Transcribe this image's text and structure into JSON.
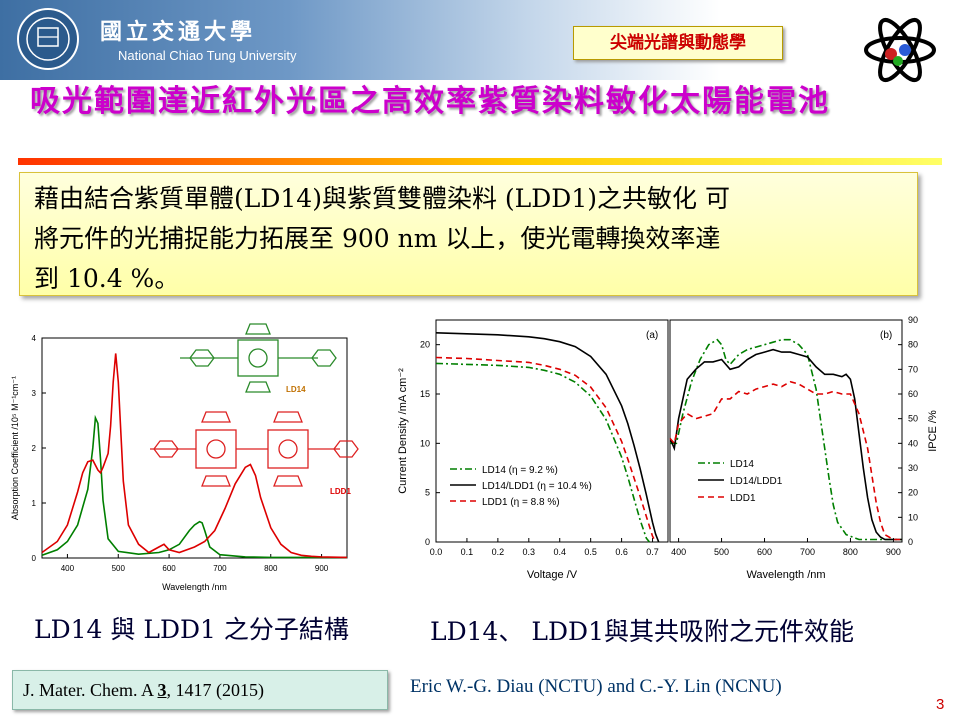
{
  "header": {
    "university_zh": "國立交通大學",
    "university_en": "National Chiao Tung University",
    "course_tag": "尖端光譜與動態學"
  },
  "title": "吸光範圍達近紅外光區之高效率紫質染料敏化太陽能電池",
  "summary": {
    "line1": "藉由結合紫質單體(LD14)與紫質雙體染料 (LDD1)之共敏化 可",
    "line2": "將元件的光捕捉能力拓展至 900 nm 以上，使光電轉換效率達",
    "line3": "到 10.4 %。"
  },
  "captions": {
    "left": "LD14 與 LDD1 之分子結構",
    "right": "LD14、 LDD1與其共吸附之元件效能"
  },
  "reference": {
    "journal": "J. Mater. Chem. A ",
    "volume": "3",
    "rest": ", 1417 (2015)"
  },
  "authors": "Eric W.-G. Diau (NCTU) and C.-Y. Lin (NCNU)",
  "page_number": "3",
  "colors": {
    "title": "#cc00cc",
    "green": "#007f00",
    "red": "#dd0000",
    "black": "#000000"
  },
  "chart_data": [
    {
      "type": "line",
      "xlabel": "Wavelength /nm",
      "ylabel": "Absorption Coefficient /10⁵ M⁻¹cm⁻¹",
      "xlim": [
        350,
        950
      ],
      "ylim": [
        0,
        4
      ],
      "xticks": [
        400,
        500,
        600,
        700,
        800,
        900
      ],
      "yticks": [
        0,
        1,
        2,
        3,
        4
      ],
      "structure_labels": {
        "ld14": "LD14",
        "ldd1": "LDD1"
      },
      "series": [
        {
          "name": "LD14",
          "color": "#007f00",
          "x": [
            350,
            380,
            400,
            420,
            440,
            450,
            455,
            460,
            465,
            470,
            480,
            500,
            540,
            580,
            600,
            620,
            640,
            650,
            660,
            665,
            670,
            680,
            700,
            750,
            800,
            850,
            900,
            950
          ],
          "y": [
            0.05,
            0.15,
            0.3,
            0.6,
            1.25,
            2.0,
            2.55,
            2.45,
            1.8,
            1.05,
            0.35,
            0.12,
            0.07,
            0.1,
            0.15,
            0.25,
            0.5,
            0.6,
            0.66,
            0.64,
            0.5,
            0.2,
            0.06,
            0.02,
            0.01,
            0.01,
            0.01,
            0.01
          ]
        },
        {
          "name": "LDD1",
          "color": "#dd0000",
          "x": [
            350,
            380,
            400,
            420,
            430,
            440,
            450,
            460,
            465,
            470,
            480,
            485,
            490,
            495,
            500,
            505,
            510,
            520,
            540,
            560,
            580,
            590,
            600,
            620,
            650,
            670,
            690,
            710,
            730,
            750,
            760,
            770,
            780,
            800,
            820,
            840,
            860,
            880,
            900,
            950
          ],
          "y": [
            0.1,
            0.3,
            0.6,
            1.2,
            1.55,
            1.75,
            1.78,
            1.6,
            1.55,
            1.65,
            1.9,
            2.4,
            3.2,
            3.72,
            3.2,
            2.3,
            1.4,
            0.6,
            0.25,
            0.1,
            0.2,
            0.25,
            0.15,
            0.1,
            0.2,
            0.3,
            0.5,
            0.9,
            1.35,
            1.65,
            1.7,
            1.5,
            1.1,
            0.55,
            0.25,
            0.1,
            0.05,
            0.03,
            0.02,
            0.01
          ]
        }
      ]
    },
    {
      "type": "line",
      "panel_label": "(a)",
      "xlabel": "Voltage /V",
      "ylabel": "Current Density /mA cm⁻²",
      "xlim": [
        0,
        0.75
      ],
      "ylim": [
        0,
        22.5
      ],
      "xticks": [
        0.0,
        0.1,
        0.2,
        0.3,
        0.4,
        0.5,
        0.6,
        0.7
      ],
      "yticks": [
        0,
        5,
        10,
        15,
        20
      ],
      "legend": [
        "LD14 (η = 9.2 %)",
        "LD14/LDD1 (η = 10.4 %)",
        "LDD1 (η = 8.8 %)"
      ],
      "series": [
        {
          "name": "LD14 (η = 9.2 %)",
          "color": "#007f00",
          "dash": "dashdot",
          "x": [
            0,
            0.1,
            0.2,
            0.3,
            0.35,
            0.4,
            0.45,
            0.5,
            0.55,
            0.6,
            0.62,
            0.64,
            0.66,
            0.68,
            0.69
          ],
          "y": [
            18.1,
            18.0,
            17.9,
            17.7,
            17.4,
            17.0,
            16.2,
            14.8,
            12.4,
            8.6,
            6.6,
            4.4,
            2.2,
            0.4,
            0
          ]
        },
        {
          "name": "LD14/LDD1 (η = 10.4 %)",
          "color": "#000000",
          "dash": "solid",
          "x": [
            0,
            0.1,
            0.2,
            0.3,
            0.35,
            0.4,
            0.45,
            0.5,
            0.55,
            0.6,
            0.62,
            0.64,
            0.66,
            0.68,
            0.7,
            0.71,
            0.72
          ],
          "y": [
            21.2,
            21.1,
            21.0,
            20.8,
            20.6,
            20.3,
            19.8,
            18.8,
            17.0,
            13.8,
            12.0,
            9.8,
            7.4,
            4.8,
            2.0,
            0.8,
            0
          ]
        },
        {
          "name": "LDD1 (η = 8.8 %)",
          "color": "#dd0000",
          "dash": "dashed",
          "x": [
            0,
            0.1,
            0.2,
            0.3,
            0.35,
            0.4,
            0.45,
            0.5,
            0.55,
            0.6,
            0.62,
            0.64,
            0.66,
            0.68,
            0.7,
            0.71
          ],
          "y": [
            18.7,
            18.6,
            18.4,
            18.2,
            17.9,
            17.5,
            16.9,
            15.7,
            13.6,
            10.2,
            8.4,
            6.5,
            4.6,
            2.6,
            0.6,
            0
          ]
        }
      ]
    },
    {
      "type": "line",
      "panel_label": "(b)",
      "xlabel": "Wavelength /nm",
      "ylabel": "IPCE /%",
      "xlim": [
        380,
        920
      ],
      "ylim": [
        0,
        90
      ],
      "xticks": [
        400,
        500,
        600,
        700,
        800,
        900
      ],
      "yticks": [
        0,
        10,
        20,
        30,
        40,
        50,
        60,
        70,
        80,
        90
      ],
      "legend": [
        "LD14",
        "LD14/LDD1",
        "LDD1"
      ],
      "series": [
        {
          "name": "LD14",
          "color": "#007f00",
          "dash": "dashdot",
          "x": [
            380,
            395,
            410,
            430,
            450,
            470,
            490,
            500,
            510,
            520,
            540,
            560,
            580,
            600,
            620,
            640,
            660,
            680,
            700,
            720,
            730,
            740,
            750,
            760,
            770,
            790,
            820,
            850,
            900,
            920
          ],
          "y": [
            40,
            40,
            52,
            65,
            74,
            80,
            82,
            80,
            74,
            72,
            76,
            78,
            79,
            80,
            81,
            82,
            82,
            80,
            76,
            62,
            50,
            38,
            26,
            15,
            8,
            3,
            1,
            1,
            1,
            1
          ]
        },
        {
          "name": "LD14/LDD1",
          "color": "#000000",
          "dash": "solid",
          "x": [
            380,
            390,
            400,
            420,
            440,
            460,
            480,
            500,
            520,
            540,
            560,
            580,
            600,
            620,
            640,
            660,
            680,
            700,
            720,
            740,
            760,
            780,
            790,
            800,
            810,
            820,
            830,
            840,
            850,
            860,
            870,
            880,
            900,
            920
          ],
          "y": [
            42,
            38,
            50,
            66,
            70,
            73,
            73,
            74,
            70,
            71,
            74,
            76,
            77,
            78,
            77,
            77,
            76,
            75,
            71,
            68,
            68,
            67,
            68,
            66,
            58,
            44,
            30,
            18,
            9,
            4,
            2,
            1,
            1,
            1
          ]
        },
        {
          "name": "LDD1",
          "color": "#dd0000",
          "dash": "dashed",
          "x": [
            380,
            390,
            400,
            420,
            440,
            460,
            480,
            500,
            520,
            540,
            560,
            580,
            600,
            620,
            640,
            660,
            680,
            700,
            720,
            740,
            760,
            780,
            800,
            820,
            840,
            860,
            870,
            880,
            900,
            920
          ],
          "y": [
            42,
            40,
            48,
            52,
            50,
            51,
            52,
            58,
            58,
            61,
            60,
            62,
            63,
            64,
            63,
            65,
            64,
            62,
            60,
            60,
            61,
            60,
            60,
            52,
            38,
            16,
            8,
            3,
            1,
            1
          ]
        }
      ]
    }
  ]
}
